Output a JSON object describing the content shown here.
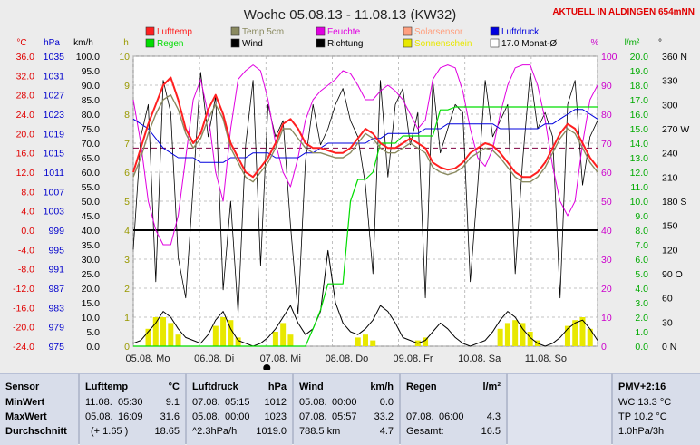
{
  "title": "Woche 05.08.13 - 11.08.13 (KW32)",
  "location_note": "AKTUELL IN ALDINGEN 654mNN",
  "legend": [
    {
      "label": "Lufttemp",
      "color": "#ff2020"
    },
    {
      "label": "Temp 5cm",
      "color": "#8a8a60"
    },
    {
      "label": "Feuchte",
      "color": "#e000e0"
    },
    {
      "label": "Solarsensor",
      "color": "#ffa080"
    },
    {
      "label": "Luftdruck",
      "color": "#0000dd"
    },
    {
      "label": "Regen",
      "color": "#00dd00"
    },
    {
      "label": "Wind",
      "color": "#000000"
    },
    {
      "label": "Richtung",
      "color": "#000000"
    },
    {
      "label": "Sonnenschein",
      "color": "#e8e800"
    },
    {
      "label": "17.0 Monat-Ø",
      "color": "#ffffff"
    }
  ],
  "axis_units": {
    "temp": "°C",
    "press": "hPa",
    "wind": "km/h",
    "sun": "h",
    "hum": "%",
    "rain": "l/m²",
    "dir": "°"
  },
  "chart_data": {
    "type": "line",
    "x_ticks": [
      "05.08. Mo",
      "06.08. Di",
      "07.08. Mi",
      "08.08. Do",
      "09.08. Fr",
      "10.08. Sa",
      "11.08. So"
    ],
    "axes": {
      "temp": {
        "range": [
          -24,
          36
        ],
        "ticks": [
          "36.0",
          "32.0",
          "28.0",
          "24.0",
          "20.0",
          "16.0",
          "12.0",
          "8.0",
          "4.0",
          "0.0",
          "-4.0",
          "-8.0",
          "-12.0",
          "-16.0",
          "-20.0",
          "-24.0"
        ],
        "color": "#e00000"
      },
      "press": {
        "range": [
          975,
          1035
        ],
        "ticks": [
          "1035",
          "1031",
          "1027",
          "1023",
          "1019",
          "1015",
          "1011",
          "1007",
          "1003",
          "999",
          "995",
          "991",
          "987",
          "983",
          "979",
          "975"
        ],
        "color": "#0000cc"
      },
      "wind": {
        "range": [
          0,
          100
        ],
        "ticks": [
          "100.0",
          "95.0",
          "90.0",
          "85.0",
          "80.0",
          "75.0",
          "70.0",
          "65.0",
          "60.0",
          "55.0",
          "50.0",
          "45.0",
          "40.0",
          "35.0",
          "30.0",
          "25.0",
          "20.0",
          "15.0",
          "10.0",
          "5.0",
          "0.0"
        ],
        "color": "#000000"
      },
      "sun": {
        "range": [
          0,
          10
        ],
        "ticks": [
          "10",
          "9",
          "8",
          "7",
          "6",
          "5",
          "4",
          "3",
          "2",
          "1",
          "0"
        ],
        "color": "#999900"
      },
      "hum": {
        "range": [
          0,
          100
        ],
        "ticks": [
          "100",
          "90",
          "80",
          "70",
          "60",
          "50",
          "40",
          "30",
          "20",
          "10",
          "0"
        ],
        "color": "#cc00cc"
      },
      "rain": {
        "range": [
          0,
          20
        ],
        "ticks": [
          "20.0",
          "19.0",
          "18.0",
          "17.0",
          "16.0",
          "15.0",
          "14.0",
          "13.0",
          "12.0",
          "11.0",
          "10.0",
          "9.0",
          "8.0",
          "7.0",
          "6.0",
          "5.0",
          "4.0",
          "3.0",
          "2.0",
          "1.0",
          "0.0"
        ],
        "color": "#00aa00"
      },
      "dir": {
        "range": [
          0,
          360
        ],
        "ticks": [
          "360 N",
          "330",
          "300",
          "270 W",
          "240",
          "210",
          "180 S",
          "150",
          "120",
          "90 O",
          "60",
          "30",
          "0 N"
        ],
        "color": "#000000"
      }
    },
    "series": [
      {
        "name": "Lufttemp",
        "axis": "temp",
        "color": "#ff2020",
        "values": [
          12,
          17,
          22,
          26,
          30,
          31.6,
          27,
          21,
          18,
          20,
          25,
          28,
          24,
          18,
          15,
          12,
          11,
          13,
          15,
          18,
          22,
          23,
          21,
          18,
          17,
          17,
          16.5,
          16,
          16,
          17,
          19,
          21,
          20,
          18,
          17,
          17,
          18,
          19,
          18,
          17,
          14,
          13,
          12.5,
          12.8,
          14,
          16,
          17,
          18,
          17.5,
          16,
          14,
          12,
          11,
          11,
          12,
          14,
          17,
          20,
          22,
          21,
          18,
          15,
          13
        ]
      },
      {
        "name": "Temp 5cm",
        "axis": "temp",
        "color": "#8a8a60",
        "values": [
          11,
          15,
          20,
          24,
          27,
          28,
          25,
          20,
          17,
          19,
          23,
          26,
          23,
          17,
          14,
          11,
          10,
          12,
          14,
          17,
          21,
          21,
          19,
          17,
          16,
          16,
          15.5,
          15,
          15,
          16,
          18,
          20,
          19,
          17,
          16,
          16,
          17,
          18,
          17,
          16,
          13,
          12,
          11.5,
          12,
          13,
          15,
          16,
          17,
          16.5,
          15,
          13,
          11,
          10,
          10,
          11,
          13,
          16,
          19,
          21,
          20,
          17,
          14,
          12
        ]
      },
      {
        "name": "Feuchte",
        "axis": "hum",
        "color": "#e000e0",
        "values": [
          85,
          70,
          50,
          40,
          35,
          35,
          45,
          65,
          85,
          92,
          80,
          60,
          50,
          75,
          92,
          95,
          97,
          95,
          85,
          70,
          60,
          55,
          65,
          78,
          85,
          88,
          90,
          92,
          95,
          94,
          90,
          85,
          85,
          88,
          90,
          88,
          85,
          80,
          75,
          78,
          92,
          96,
          97,
          96,
          88,
          75,
          65,
          62,
          68,
          80,
          90,
          96,
          97,
          97,
          90,
          78,
          62,
          50,
          45,
          50,
          70,
          85,
          90
        ]
      },
      {
        "name": "Luftdruck",
        "axis": "press",
        "color": "#0000dd",
        "values": [
          1022,
          1021,
          1020,
          1018,
          1016,
          1015,
          1014,
          1014,
          1014,
          1013,
          1013,
          1013,
          1013,
          1014,
          1014,
          1014,
          1015,
          1015,
          1015,
          1014,
          1014,
          1014,
          1014,
          1015,
          1015,
          1016,
          1017,
          1017,
          1017,
          1017,
          1017,
          1017,
          1018,
          1018,
          1019,
          1019,
          1019,
          1019,
          1019,
          1020,
          1020,
          1020,
          1021,
          1021,
          1021,
          1021,
          1021,
          1021,
          1021,
          1020,
          1020,
          1020,
          1020,
          1020,
          1020,
          1021,
          1021,
          1022,
          1023,
          1024,
          1024,
          1023,
          1022
        ]
      },
      {
        "name": "Regen",
        "axis": "rain",
        "color": "#00dd00",
        "values": [
          0,
          0,
          0,
          0,
          0,
          0,
          0,
          0,
          0,
          0,
          0,
          0,
          0,
          0,
          0,
          0,
          0,
          0,
          0,
          0,
          0,
          0,
          0,
          0,
          1.2,
          2.5,
          4.3,
          4.3,
          4.3,
          10,
          11.5,
          11.5,
          12,
          14,
          14,
          14,
          14.5,
          14.5,
          14.5,
          14.5,
          14.5,
          16.3,
          16.3,
          16.5,
          16.5,
          16.5,
          16.5,
          16.5,
          16.5,
          16.5,
          16.5,
          16.5,
          16.5,
          16.5,
          16.5,
          16.5,
          16.5,
          16.5,
          16.5,
          16.5,
          16.5,
          16.5,
          16.5
        ]
      },
      {
        "name": "Wind",
        "axis": "wind",
        "color": "#000000",
        "values": [
          1,
          2,
          5,
          8,
          12,
          10,
          6,
          3,
          2,
          1,
          4,
          9,
          12,
          6,
          2,
          1,
          0,
          1,
          3,
          6,
          10,
          14,
          8,
          4,
          6,
          12,
          33,
          15,
          8,
          5,
          4,
          6,
          9,
          14,
          12,
          8,
          3,
          2,
          1,
          2,
          5,
          8,
          6,
          3,
          1,
          0,
          1,
          2,
          5,
          9,
          12,
          10,
          6,
          3,
          1,
          0,
          1,
          3,
          6,
          8,
          9,
          6,
          2
        ]
      },
      {
        "name": "Richtung",
        "axis": "dir",
        "color": "#000000",
        "values": [
          120,
          260,
          300,
          80,
          330,
          290,
          110,
          60,
          200,
          340,
          260,
          310,
          70,
          180,
          40,
          250,
          330,
          100,
          300,
          260,
          280,
          150,
          40,
          230,
          300,
          250,
          270,
          300,
          320,
          280,
          260,
          200,
          90,
          330,
          210,
          300,
          320,
          250,
          290,
          60,
          330,
          240,
          270,
          300,
          290,
          80,
          200,
          330,
          260,
          280,
          300,
          90,
          230,
          340,
          270,
          290,
          260,
          60,
          300,
          330,
          200,
          260,
          280
        ]
      },
      {
        "name": "Sonnenschein",
        "axis": "sun",
        "color": "#e8e800",
        "values": [
          0,
          0,
          0.6,
          1.0,
          1.0,
          0.8,
          0.4,
          0,
          0,
          0,
          0,
          0.7,
          1.0,
          0.9,
          0.3,
          0,
          0,
          0,
          0,
          0.5,
          0.8,
          0.4,
          0,
          0,
          0,
          0,
          0,
          0,
          0,
          0,
          0.3,
          0.4,
          0.2,
          0,
          0,
          0,
          0,
          0,
          0.2,
          0.3,
          0,
          0,
          0,
          0,
          0,
          0,
          0,
          0,
          0,
          0.6,
          0.8,
          0.9,
          0.8,
          0.5,
          0.2,
          0,
          0,
          0,
          0.7,
          0.9,
          1.0,
          0.6,
          0
        ]
      }
    ],
    "month_avg": {
      "label": "17.0 Monat-Ø",
      "axis": "temp",
      "value": 17.0
    }
  },
  "footer": {
    "sensor": {
      "h1": "Sensor",
      "min": "MinWert",
      "max": "MaxWert",
      "avg": "Durchschnitt"
    },
    "lufttemp": {
      "h1": "Lufttemp",
      "unit": "°C",
      "min_date": "11.08.",
      "min_time": "05:30",
      "min_val": "9.1",
      "max_date": "05.08.",
      "max_time": "16:09",
      "max_val": "31.6",
      "avg_note": "(+ 1.65 )",
      "avg_val": "18.65"
    },
    "luftdruck": {
      "h1": "Luftdruck",
      "unit": "hPa",
      "min_date": "07.08.",
      "min_time": "05:15",
      "min_val": "1012",
      "max_date": "05.08.",
      "max_time": "00:00",
      "max_val": "1023",
      "avg_note": "^2.3hPa/h",
      "avg_val": "1019.0"
    },
    "wind": {
      "h1": "Wind",
      "unit": "km/h",
      "min_date": "05.08.",
      "min_time": "00:00",
      "min_val": "0.0",
      "max_date": "07.08.",
      "max_time": "05:57",
      "max_val": "33.2",
      "avg_note": "788.5 km",
      "avg_val": "4.7"
    },
    "regen": {
      "h1": "Regen",
      "unit": "l/m²",
      "max_date": "07.08.",
      "max_time": "06:00",
      "max_val": "4.3",
      "avg_note": "Gesamt:",
      "avg_val": "16.5"
    },
    "pmv": {
      "h1": "PMV+2:16",
      "wc": "WC 13.3 °C",
      "tp": "TP 10.2 °C",
      "rate": "1.0hPa/3h"
    }
  }
}
